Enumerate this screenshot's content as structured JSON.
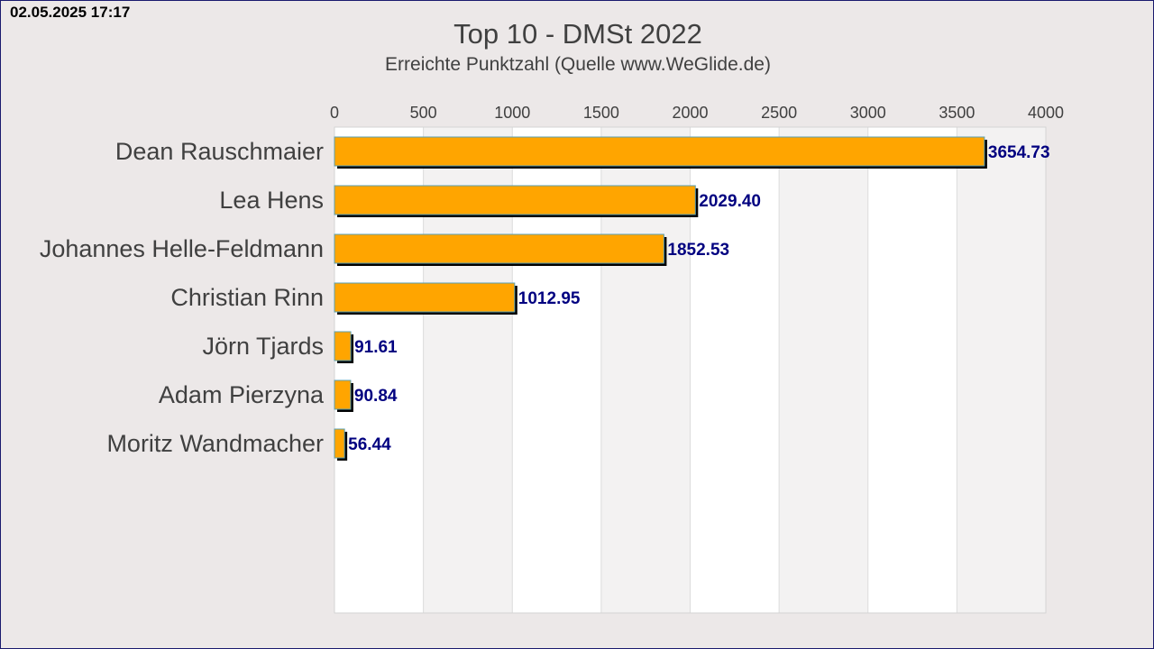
{
  "timestamp": "02.05.2025 17:17",
  "chart_data": {
    "type": "bar",
    "orientation": "horizontal",
    "title": "Top 10 - DMSt 2022",
    "subtitle": "Erreichte Punktzahl (Quelle www.WeGlide.de)",
    "categories": [
      "Dean Rauschmaier",
      "Lea Hens",
      "Johannes Helle-Feldmann",
      "Christian Rinn",
      "Jörn Tjards",
      "Adam Pierzyna",
      "Moritz  Wandmacher"
    ],
    "values": [
      3654.73,
      2029.4,
      1852.53,
      1012.95,
      91.61,
      90.84,
      56.44
    ],
    "value_labels": [
      "3654.73",
      "2029.40",
      "1852.53",
      "1012.95",
      "91.61",
      "90.84",
      "56.44"
    ],
    "xlim": [
      0,
      4000
    ],
    "xticks": [
      "0",
      "500",
      "1000",
      "1500",
      "2000",
      "2500",
      "3000",
      "3500",
      "4000"
    ],
    "xaxis_position": "top",
    "grid": true,
    "legend": "none",
    "colors": {
      "bar": "#ffa500",
      "value_label": "#000080",
      "category_label": "#404040",
      "band_light": "#ffffff",
      "band_dark": "#f3f2f2"
    }
  }
}
